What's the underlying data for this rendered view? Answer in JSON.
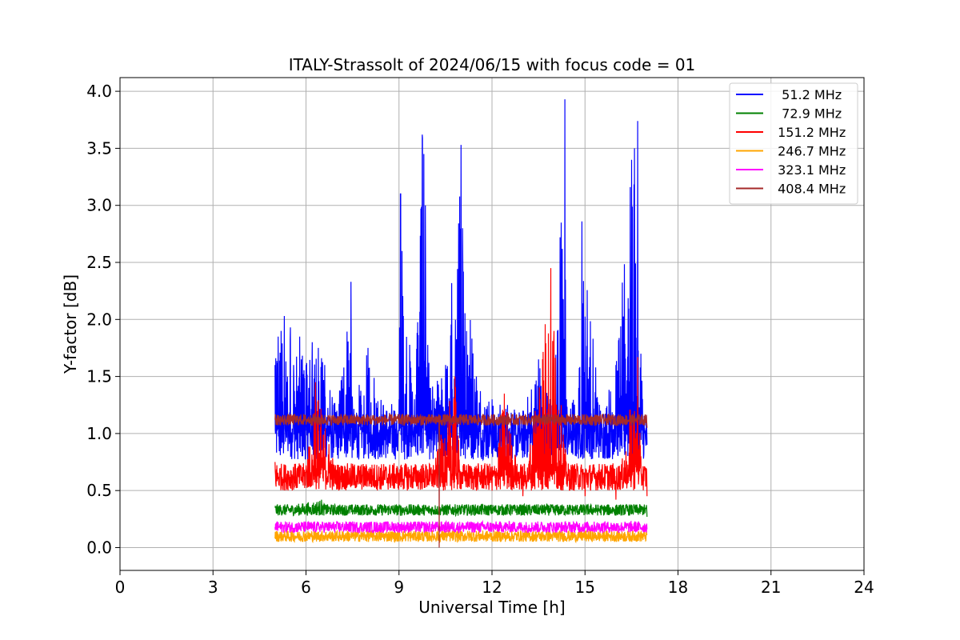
{
  "chart_data": {
    "type": "line",
    "title": "ITALY-Strassolt of 2024/06/15 with focus code = 01",
    "xlabel": "Universal Time [h]",
    "ylabel": "Y-factor [dB]",
    "xlim": [
      0,
      24
    ],
    "ylim": [
      -0.2,
      4.12
    ],
    "xticks": [
      0,
      3,
      6,
      9,
      12,
      15,
      18,
      21,
      24
    ],
    "xtick_labels": [
      "0",
      "3",
      "6",
      "9",
      "12",
      "15",
      "18",
      "21",
      "24"
    ],
    "yticks": [
      0.0,
      0.5,
      1.0,
      1.5,
      2.0,
      2.5,
      3.0,
      3.5,
      4.0
    ],
    "ytick_labels": [
      "0.0",
      "0.5",
      "1.0",
      "1.5",
      "2.0",
      "2.5",
      "3.0",
      "3.5",
      "4.0"
    ],
    "grid": true,
    "legend_position": "top-right",
    "series": [
      {
        "name": "  51.2 MHz",
        "color": "#0000ff",
        "base": 0.95,
        "noise": 0.18,
        "x": [
          5.0,
          5.1,
          5.2,
          5.3,
          5.4,
          5.5,
          5.6,
          5.8,
          6.0,
          6.2,
          6.4,
          6.6,
          7.0,
          7.45,
          7.5,
          8.0,
          8.5,
          9.0,
          9.05,
          9.1,
          9.5,
          9.75,
          9.8,
          9.85,
          10.0,
          10.5,
          11.0,
          11.05,
          11.5,
          12.0,
          12.5,
          13.0,
          13.5,
          14.0,
          14.2,
          14.35,
          14.4,
          14.8,
          14.9,
          15.5,
          16.0,
          16.5,
          16.6,
          16.7,
          16.8,
          17.0
        ],
        "y": [
          1.6,
          1.85,
          1.9,
          2.03,
          1.5,
          1.93,
          1.6,
          1.85,
          1.6,
          1.8,
          1.75,
          1.6,
          1.2,
          2.33,
          1.2,
          1.75,
          1.25,
          1.3,
          3.1,
          2.6,
          1.3,
          3.62,
          3.45,
          3.0,
          1.4,
          1.6,
          3.53,
          2.8,
          1.5,
          1.3,
          1.25,
          1.2,
          1.65,
          1.3,
          2.72,
          3.93,
          1.3,
          1.4,
          2.86,
          1.2,
          1.6,
          3.4,
          3.5,
          3.74,
          1.7,
          0.9
        ]
      },
      {
        "name": "  72.9 MHz",
        "color": "#008000",
        "base": 0.33,
        "noise": 0.05,
        "x": [
          5.0,
          6.5,
          7.0,
          8.5,
          10.0,
          12.0,
          14.0,
          16.0,
          17.0
        ],
        "y": [
          0.35,
          0.42,
          0.33,
          0.34,
          0.32,
          0.3,
          0.3,
          0.28,
          0.27
        ]
      },
      {
        "name": " 151.2 MHz",
        "color": "#ff0000",
        "base": 0.62,
        "noise": 0.12,
        "x": [
          5.0,
          6.0,
          6.3,
          7.0,
          8.0,
          9.0,
          10.0,
          10.8,
          11.0,
          11.5,
          12.0,
          12.4,
          13.0,
          13.9,
          14.0,
          14.5,
          15.0,
          16.0,
          16.7,
          16.8,
          17.0
        ],
        "y": [
          0.75,
          0.72,
          1.45,
          0.65,
          0.6,
          0.55,
          0.58,
          1.5,
          0.6,
          0.5,
          0.5,
          1.35,
          0.45,
          2.45,
          1.9,
          0.5,
          0.45,
          0.42,
          1.67,
          0.8,
          0.45
        ]
      },
      {
        "name": " 246.7 MHz",
        "color": "#ffa500",
        "base": 0.1,
        "noise": 0.05,
        "x": [
          5.0,
          11.0,
          17.0
        ],
        "y": [
          0.08,
          0.1,
          0.12
        ]
      },
      {
        "name": " 323.1 MHz",
        "color": "#ff00ff",
        "base": 0.18,
        "noise": 0.05,
        "x": [
          5.0,
          11.0,
          17.0
        ],
        "y": [
          0.18,
          0.19,
          0.16
        ]
      },
      {
        "name": " 408.4 MHz",
        "color": "#a52a2a",
        "base": 1.12,
        "noise": 0.05,
        "x": [
          5.0,
          9.0,
          10.3,
          10.35,
          13.0,
          17.0
        ],
        "y": [
          1.12,
          1.12,
          0.0,
          1.1,
          1.08,
          1.05
        ]
      }
    ]
  }
}
